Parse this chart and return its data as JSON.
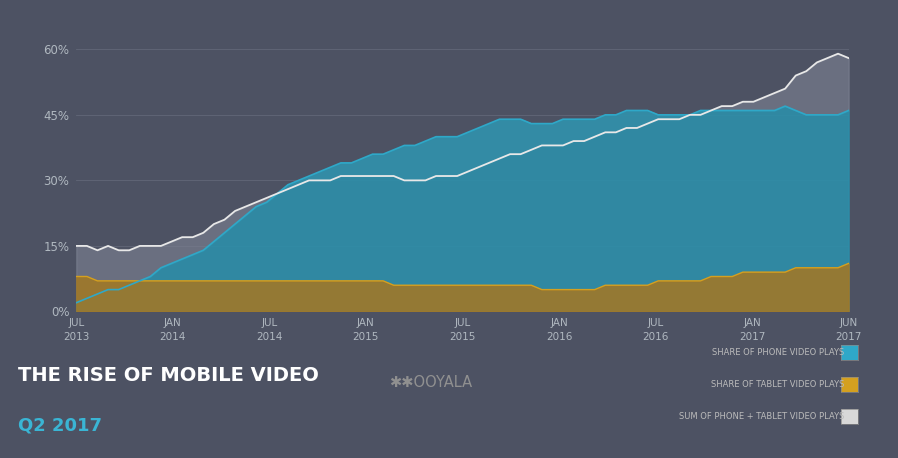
{
  "background_color": "#4d5263",
  "plot_bg_color": "#4d5263",
  "title_line1": "THE RISE OF MOBILE VIDEO",
  "title_line2": "Q2 2017",
  "title_color": "#ffffff",
  "subtitle_color": "#3ab5d4",
  "ylabel_ticks": [
    "0%",
    "15%",
    "30%",
    "45%",
    "60%"
  ],
  "ytick_vals": [
    0,
    15,
    30,
    45,
    60
  ],
  "xtick_labels": [
    "JUL\n2013",
    "JAN\n2014",
    "JUL\n2014",
    "JAN\n2015",
    "JUL\n2015",
    "JAN\n2016",
    "JUL\n2016",
    "JAN\n2017",
    "JUN\n2017"
  ],
  "phone_color": "#2fa8c8",
  "tablet_color": "#d4a020",
  "sum_color": "#e8e8e8",
  "phone_fill": "#2d8faa",
  "tablet_fill_top": "#b08030",
  "tablet_fill_bot": "#505820",
  "sum_fill": "#7a8090",
  "grid_color": "#6a7080",
  "legend_text_color": "#bbbbbb",
  "phone_data": [
    2,
    3,
    4,
    5,
    5,
    6,
    7,
    8,
    10,
    11,
    12,
    13,
    14,
    16,
    18,
    20,
    22,
    24,
    25,
    27,
    29,
    30,
    31,
    32,
    33,
    34,
    34,
    35,
    36,
    36,
    37,
    38,
    38,
    39,
    40,
    40,
    40,
    41,
    42,
    43,
    44,
    44,
    44,
    43,
    43,
    43,
    44,
    44,
    44,
    44,
    45,
    45,
    46,
    46,
    46,
    45,
    45,
    45,
    45,
    46,
    46,
    46,
    46,
    46,
    46,
    46,
    46,
    47,
    46,
    45,
    45,
    45,
    45,
    46
  ],
  "tablet_data": [
    8,
    8,
    7,
    7,
    7,
    7,
    7,
    7,
    7,
    7,
    7,
    7,
    7,
    7,
    7,
    7,
    7,
    7,
    7,
    7,
    7,
    7,
    7,
    7,
    7,
    7,
    7,
    7,
    7,
    7,
    6,
    6,
    6,
    6,
    6,
    6,
    6,
    6,
    6,
    6,
    6,
    6,
    6,
    6,
    5,
    5,
    5,
    5,
    5,
    5,
    6,
    6,
    6,
    6,
    6,
    7,
    7,
    7,
    7,
    7,
    8,
    8,
    8,
    9,
    9,
    9,
    9,
    9,
    10,
    10,
    10,
    10,
    10,
    11
  ],
  "sum_data": [
    15,
    15,
    14,
    15,
    14,
    14,
    15,
    15,
    15,
    16,
    17,
    17,
    18,
    20,
    21,
    23,
    24,
    25,
    26,
    27,
    28,
    29,
    30,
    30,
    30,
    31,
    31,
    31,
    31,
    31,
    31,
    30,
    30,
    30,
    31,
    31,
    31,
    32,
    33,
    34,
    35,
    36,
    36,
    37,
    38,
    38,
    38,
    39,
    39,
    40,
    41,
    41,
    42,
    42,
    43,
    44,
    44,
    44,
    45,
    45,
    46,
    47,
    47,
    48,
    48,
    49,
    50,
    51,
    54,
    55,
    57,
    58,
    59,
    58
  ],
  "n_points": 74,
  "ylim": [
    0,
    65
  ]
}
